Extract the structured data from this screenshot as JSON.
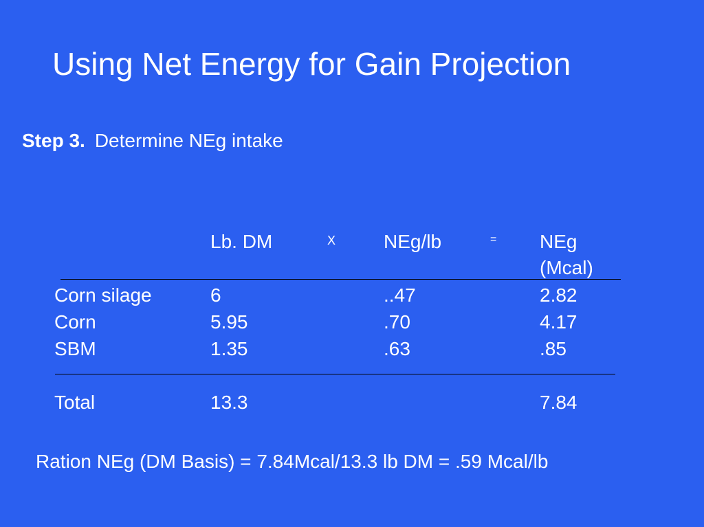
{
  "slide": {
    "title": "Using Net Energy for Gain Projection",
    "step_label": "Step 3.",
    "step_text": "Determine NEg intake"
  },
  "table": {
    "headers": {
      "lb_dm": "Lb. DM",
      "times": "X",
      "neg_lb": "NEg/lb",
      "equals": "=",
      "neg_line1": "NEg",
      "neg_line2": "(Mcal)"
    },
    "rows": [
      {
        "feed": "Corn silage",
        "lb_dm": "6",
        "neg_lb": "..47",
        "neg": "2.82"
      },
      {
        "feed": "Corn",
        "lb_dm": "5.95",
        "neg_lb": ".70",
        "neg": "4.17"
      },
      {
        "feed": "SBM",
        "lb_dm": "1.35",
        "neg_lb": ".63",
        "neg": ".85"
      }
    ],
    "total": {
      "label": "Total",
      "lb_dm": "13.3",
      "neg": "7.84"
    }
  },
  "summary": "Ration NEg (DM Basis) = 7.84Mcal/13.3 lb DM = .59 Mcal/lb",
  "colors": {
    "background": "#2b5ff0",
    "text": "#ffffff",
    "rule": "#000000"
  }
}
